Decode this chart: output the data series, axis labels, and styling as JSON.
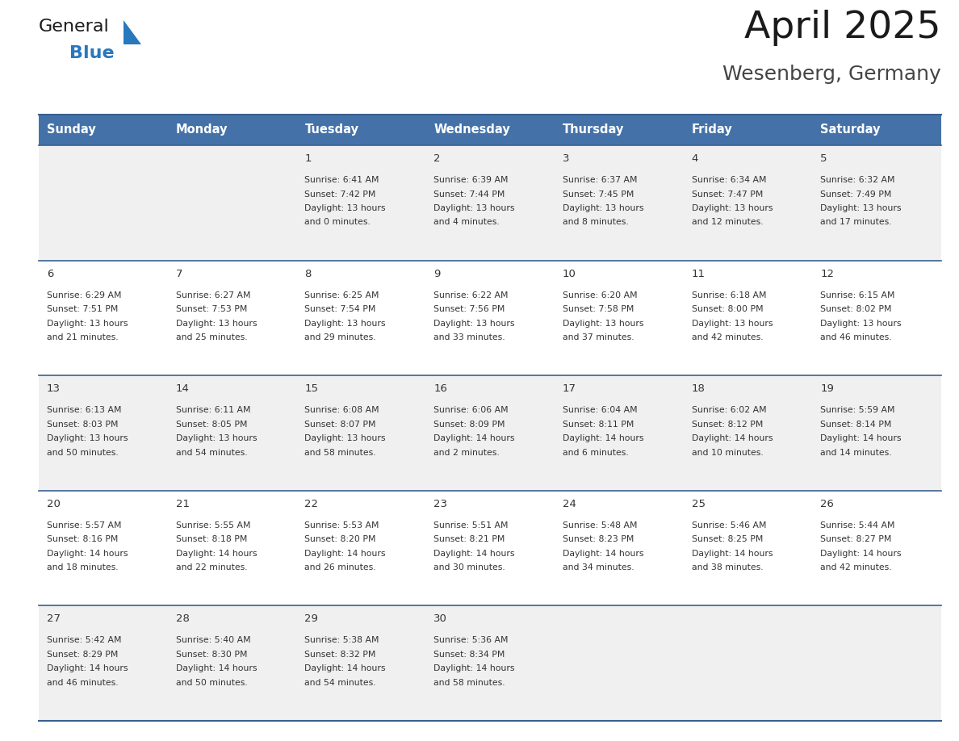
{
  "title": "April 2025",
  "subtitle": "Wesenberg, Germany",
  "header_bg": "#4472A8",
  "header_text_color": "#FFFFFF",
  "cell_bg_odd": "#F0F0F0",
  "cell_bg_even": "#FFFFFF",
  "day_names": [
    "Sunday",
    "Monday",
    "Tuesday",
    "Wednesday",
    "Thursday",
    "Friday",
    "Saturday"
  ],
  "title_color": "#1a1a1a",
  "subtitle_color": "#444444",
  "day_num_color": "#333333",
  "cell_text_color": "#333333",
  "divider_color": "#3A6090",
  "logo_general_color": "#1a1a1a",
  "logo_blue_color": "#2878BE",
  "figsize": [
    11.88,
    9.18
  ],
  "dpi": 100,
  "calendar_data": [
    [
      {
        "day": null,
        "sunrise": null,
        "sunset": null,
        "daylight_line1": null,
        "daylight_line2": null
      },
      {
        "day": null,
        "sunrise": null,
        "sunset": null,
        "daylight_line1": null,
        "daylight_line2": null
      },
      {
        "day": "1",
        "sunrise": "6:41 AM",
        "sunset": "7:42 PM",
        "daylight_line1": "Daylight: 13 hours",
        "daylight_line2": "and 0 minutes."
      },
      {
        "day": "2",
        "sunrise": "6:39 AM",
        "sunset": "7:44 PM",
        "daylight_line1": "Daylight: 13 hours",
        "daylight_line2": "and 4 minutes."
      },
      {
        "day": "3",
        "sunrise": "6:37 AM",
        "sunset": "7:45 PM",
        "daylight_line1": "Daylight: 13 hours",
        "daylight_line2": "and 8 minutes."
      },
      {
        "day": "4",
        "sunrise": "6:34 AM",
        "sunset": "7:47 PM",
        "daylight_line1": "Daylight: 13 hours",
        "daylight_line2": "and 12 minutes."
      },
      {
        "day": "5",
        "sunrise": "6:32 AM",
        "sunset": "7:49 PM",
        "daylight_line1": "Daylight: 13 hours",
        "daylight_line2": "and 17 minutes."
      }
    ],
    [
      {
        "day": "6",
        "sunrise": "6:29 AM",
        "sunset": "7:51 PM",
        "daylight_line1": "Daylight: 13 hours",
        "daylight_line2": "and 21 minutes."
      },
      {
        "day": "7",
        "sunrise": "6:27 AM",
        "sunset": "7:53 PM",
        "daylight_line1": "Daylight: 13 hours",
        "daylight_line2": "and 25 minutes."
      },
      {
        "day": "8",
        "sunrise": "6:25 AM",
        "sunset": "7:54 PM",
        "daylight_line1": "Daylight: 13 hours",
        "daylight_line2": "and 29 minutes."
      },
      {
        "day": "9",
        "sunrise": "6:22 AM",
        "sunset": "7:56 PM",
        "daylight_line1": "Daylight: 13 hours",
        "daylight_line2": "and 33 minutes."
      },
      {
        "day": "10",
        "sunrise": "6:20 AM",
        "sunset": "7:58 PM",
        "daylight_line1": "Daylight: 13 hours",
        "daylight_line2": "and 37 minutes."
      },
      {
        "day": "11",
        "sunrise": "6:18 AM",
        "sunset": "8:00 PM",
        "daylight_line1": "Daylight: 13 hours",
        "daylight_line2": "and 42 minutes."
      },
      {
        "day": "12",
        "sunrise": "6:15 AM",
        "sunset": "8:02 PM",
        "daylight_line1": "Daylight: 13 hours",
        "daylight_line2": "and 46 minutes."
      }
    ],
    [
      {
        "day": "13",
        "sunrise": "6:13 AM",
        "sunset": "8:03 PM",
        "daylight_line1": "Daylight: 13 hours",
        "daylight_line2": "and 50 minutes."
      },
      {
        "day": "14",
        "sunrise": "6:11 AM",
        "sunset": "8:05 PM",
        "daylight_line1": "Daylight: 13 hours",
        "daylight_line2": "and 54 minutes."
      },
      {
        "day": "15",
        "sunrise": "6:08 AM",
        "sunset": "8:07 PM",
        "daylight_line1": "Daylight: 13 hours",
        "daylight_line2": "and 58 minutes."
      },
      {
        "day": "16",
        "sunrise": "6:06 AM",
        "sunset": "8:09 PM",
        "daylight_line1": "Daylight: 14 hours",
        "daylight_line2": "and 2 minutes."
      },
      {
        "day": "17",
        "sunrise": "6:04 AM",
        "sunset": "8:11 PM",
        "daylight_line1": "Daylight: 14 hours",
        "daylight_line2": "and 6 minutes."
      },
      {
        "day": "18",
        "sunrise": "6:02 AM",
        "sunset": "8:12 PM",
        "daylight_line1": "Daylight: 14 hours",
        "daylight_line2": "and 10 minutes."
      },
      {
        "day": "19",
        "sunrise": "5:59 AM",
        "sunset": "8:14 PM",
        "daylight_line1": "Daylight: 14 hours",
        "daylight_line2": "and 14 minutes."
      }
    ],
    [
      {
        "day": "20",
        "sunrise": "5:57 AM",
        "sunset": "8:16 PM",
        "daylight_line1": "Daylight: 14 hours",
        "daylight_line2": "and 18 minutes."
      },
      {
        "day": "21",
        "sunrise": "5:55 AM",
        "sunset": "8:18 PM",
        "daylight_line1": "Daylight: 14 hours",
        "daylight_line2": "and 22 minutes."
      },
      {
        "day": "22",
        "sunrise": "5:53 AM",
        "sunset": "8:20 PM",
        "daylight_line1": "Daylight: 14 hours",
        "daylight_line2": "and 26 minutes."
      },
      {
        "day": "23",
        "sunrise": "5:51 AM",
        "sunset": "8:21 PM",
        "daylight_line1": "Daylight: 14 hours",
        "daylight_line2": "and 30 minutes."
      },
      {
        "day": "24",
        "sunrise": "5:48 AM",
        "sunset": "8:23 PM",
        "daylight_line1": "Daylight: 14 hours",
        "daylight_line2": "and 34 minutes."
      },
      {
        "day": "25",
        "sunrise": "5:46 AM",
        "sunset": "8:25 PM",
        "daylight_line1": "Daylight: 14 hours",
        "daylight_line2": "and 38 minutes."
      },
      {
        "day": "26",
        "sunrise": "5:44 AM",
        "sunset": "8:27 PM",
        "daylight_line1": "Daylight: 14 hours",
        "daylight_line2": "and 42 minutes."
      }
    ],
    [
      {
        "day": "27",
        "sunrise": "5:42 AM",
        "sunset": "8:29 PM",
        "daylight_line1": "Daylight: 14 hours",
        "daylight_line2": "and 46 minutes."
      },
      {
        "day": "28",
        "sunrise": "5:40 AM",
        "sunset": "8:30 PM",
        "daylight_line1": "Daylight: 14 hours",
        "daylight_line2": "and 50 minutes."
      },
      {
        "day": "29",
        "sunrise": "5:38 AM",
        "sunset": "8:32 PM",
        "daylight_line1": "Daylight: 14 hours",
        "daylight_line2": "and 54 minutes."
      },
      {
        "day": "30",
        "sunrise": "5:36 AM",
        "sunset": "8:34 PM",
        "daylight_line1": "Daylight: 14 hours",
        "daylight_line2": "and 58 minutes."
      },
      {
        "day": null,
        "sunrise": null,
        "sunset": null,
        "daylight_line1": null,
        "daylight_line2": null
      },
      {
        "day": null,
        "sunrise": null,
        "sunset": null,
        "daylight_line1": null,
        "daylight_line2": null
      },
      {
        "day": null,
        "sunrise": null,
        "sunset": null,
        "daylight_line1": null,
        "daylight_line2": null
      }
    ]
  ]
}
